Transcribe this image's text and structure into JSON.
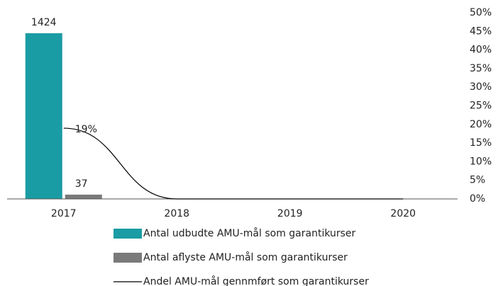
{
  "chart_data": {
    "type": "bar",
    "categories": [
      "2017",
      "2018",
      "2019",
      "2020"
    ],
    "ylim": [
      0,
      1600
    ],
    "y2lim": [
      0,
      50
    ],
    "y2ticks": [
      {
        "value": 0,
        "label": "0%"
      },
      {
        "value": 5,
        "label": "5%"
      },
      {
        "value": 10,
        "label": "10%"
      },
      {
        "value": 15,
        "label": "15%"
      },
      {
        "value": 20,
        "label": "20%"
      },
      {
        "value": 25,
        "label": "25%"
      },
      {
        "value": 30,
        "label": "30%"
      },
      {
        "value": 35,
        "label": "35%"
      },
      {
        "value": 40,
        "label": "40%"
      },
      {
        "value": 45,
        "label": "45%"
      },
      {
        "value": 50,
        "label": "50%"
      }
    ],
    "legend": "bottom",
    "series": [
      {
        "name": "Antal udbudte AMU-mål som garantikurser",
        "type": "bar",
        "color": "#1a9ca5",
        "values": [
          1424,
          null,
          null,
          null
        ],
        "value_labels": [
          "1424",
          null,
          null,
          null
        ]
      },
      {
        "name": "Antal aflyste AMU-mål som garantikurser",
        "type": "bar",
        "color": "#7a7a7a",
        "values": [
          37,
          null,
          null,
          null
        ],
        "value_labels": [
          "37",
          null,
          null,
          null
        ]
      },
      {
        "name": "Andel  AMU-mål gennmført som garantikurser",
        "type": "line",
        "axis": "y2",
        "color": "#000000",
        "values": [
          19,
          0,
          0,
          0
        ],
        "value_labels": [
          "19%",
          null,
          null,
          null
        ]
      }
    ]
  }
}
